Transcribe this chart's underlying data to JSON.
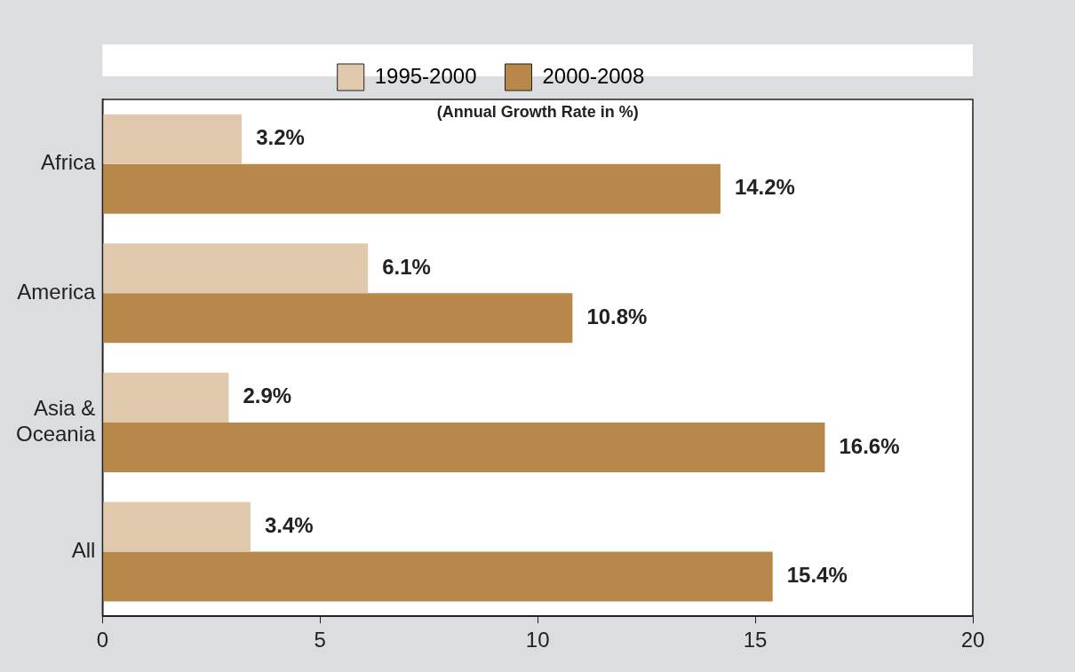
{
  "chart_data": {
    "type": "bar",
    "orientation": "horizontal",
    "title": "(Annual Growth Rate in %)",
    "categories": [
      "Africa",
      "America",
      "Asia & Oceania",
      "All"
    ],
    "series": [
      {
        "name": "1995-2000",
        "color": "#e0c9ac",
        "values": [
          3.2,
          6.1,
          2.9,
          3.4
        ],
        "value_labels": [
          "3.2%",
          "6.1%",
          "2.9%",
          "3.4%"
        ]
      },
      {
        "name": "2000-2008",
        "color": "#b8874a",
        "values": [
          14.2,
          10.8,
          16.6,
          15.4
        ],
        "value_labels": [
          "14.2%",
          "10.8%",
          "16.6%",
          "15.4%"
        ]
      }
    ],
    "xlim": [
      0,
      20
    ],
    "xticks": [
      0,
      5,
      10,
      15,
      20
    ],
    "grid": false,
    "legend": "top"
  }
}
